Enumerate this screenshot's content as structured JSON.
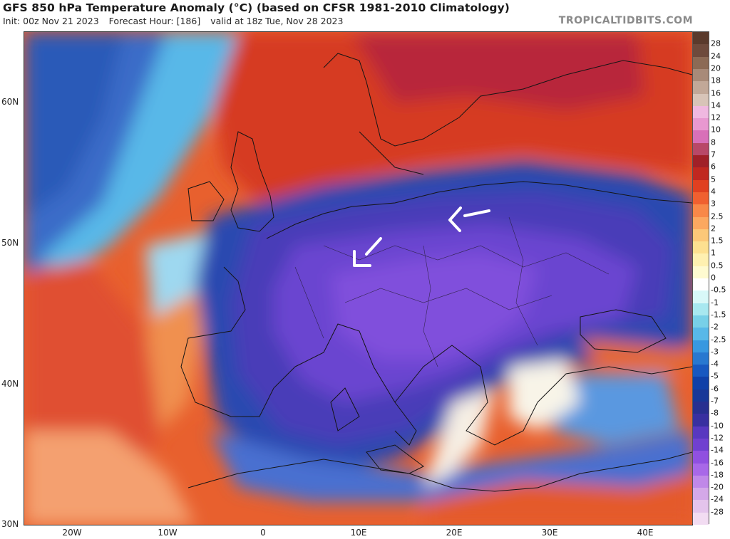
{
  "header": {
    "title": "GFS 850 hPa Temperature Anomaly (°C) (based on CFSR 1981-2010 Climatology)",
    "init": "Init: 00z Nov 21 2023",
    "forecast_hour": "Forecast Hour: [186]",
    "valid": "valid at 18z Tue, Nov 28 2023",
    "site": "TROPICALTIDBITS.COM"
  },
  "axes": {
    "lat_labels": [
      "60N",
      "50N",
      "40N",
      "30N"
    ],
    "lon_labels": [
      "20W",
      "10W",
      "0",
      "10E",
      "20E",
      "30E",
      "40E"
    ]
  },
  "legend": {
    "labels": [
      "28",
      "24",
      "20",
      "18",
      "16",
      "14",
      "12",
      "10",
      "8",
      "7",
      "6",
      "5",
      "4",
      "3",
      "2.5",
      "2",
      "1.5",
      "1",
      "0.5",
      "0",
      "-0.5",
      "-1",
      "-1.5",
      "-2",
      "-2.5",
      "-3",
      "-4",
      "-5",
      "-6",
      "-7",
      "-8",
      "-10",
      "-12",
      "-14",
      "-16",
      "-18",
      "-20",
      "-24",
      "-28"
    ],
    "colors": [
      "#6e4a3c",
      "#8c6a55",
      "#a88a78",
      "#c2a898",
      "#d8c4b8",
      "#f0b8e0",
      "#e898d0",
      "#d870b8",
      "#b84868",
      "#a02028",
      "#c02820",
      "#e04020",
      "#f06030",
      "#f88848",
      "#fba860",
      "#fcc878",
      "#fde090",
      "#fef0b0",
      "#fefad0",
      "#ffffff",
      "#d8f8f8",
      "#a8e8f0",
      "#78d0e8",
      "#58b8e8",
      "#3898e0",
      "#2878d0",
      "#1858c0",
      "#1040a8",
      "#183898",
      "#283090",
      "#3830a0",
      "#5838c0",
      "#7040d0",
      "#9050e0",
      "#a868e8",
      "#c088e8",
      "#d4a8e8",
      "#e4c4ec",
      "#f2dcf2"
    ]
  },
  "annotations": {
    "arrows": [
      "wind-arrow-1",
      "wind-arrow-2"
    ]
  }
}
